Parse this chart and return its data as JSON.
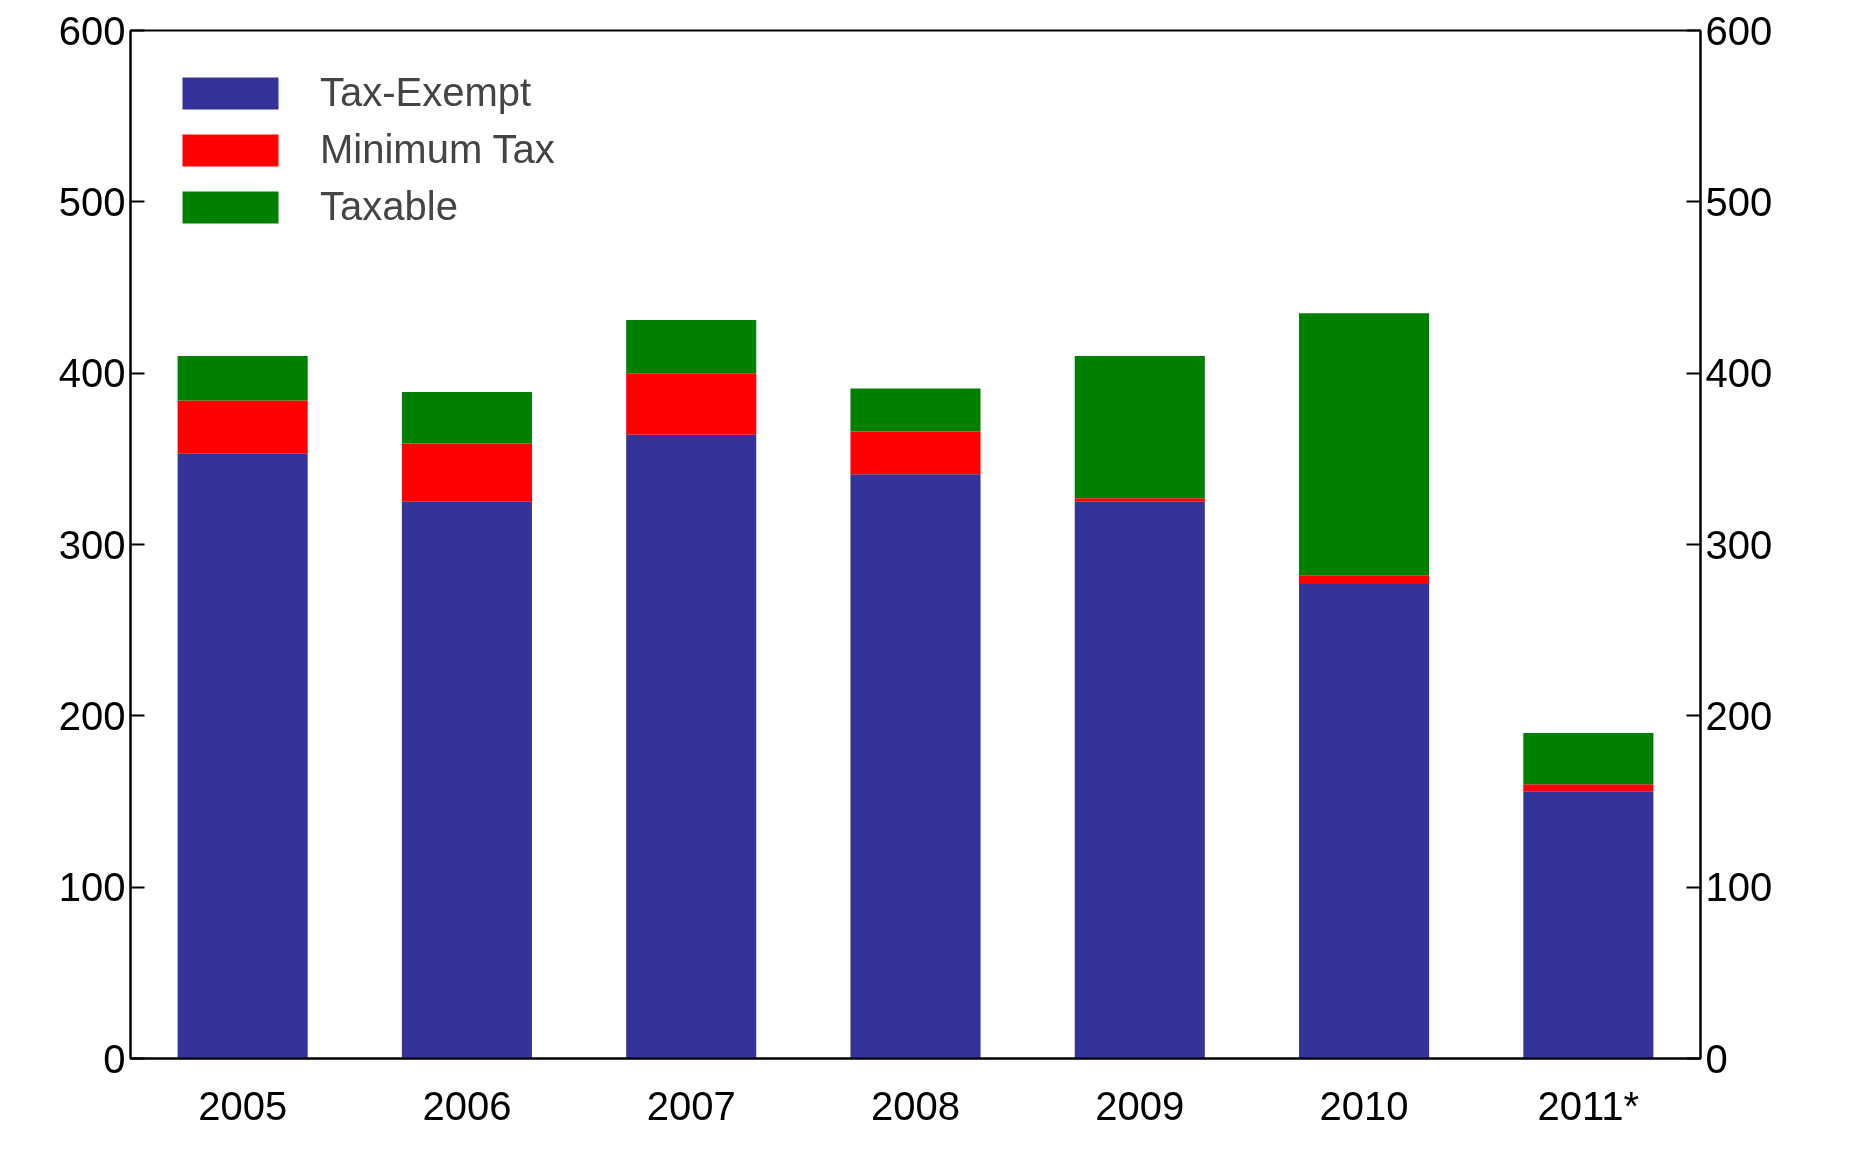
{
  "chart_data": {
    "type": "bar",
    "stacked": true,
    "categories": [
      "2005",
      "2006",
      "2007",
      "2008",
      "2009",
      "2010",
      "2011*"
    ],
    "series": [
      {
        "name": "Tax-Exempt",
        "color": "#333399",
        "values": [
          353,
          325,
          364,
          341,
          325,
          277,
          156
        ]
      },
      {
        "name": "Minimum Tax",
        "color": "#ff0000",
        "values": [
          31,
          34,
          36,
          25,
          2,
          5,
          4
        ]
      },
      {
        "name": "Taxable",
        "color": "#008000",
        "values": [
          26,
          30,
          31,
          25,
          83,
          153,
          30
        ]
      }
    ],
    "ylim": [
      0,
      600
    ],
    "yticks": [
      0,
      100,
      200,
      300,
      400,
      500,
      600
    ],
    "y2lim": [
      0,
      600
    ],
    "y2ticks": [
      0,
      100,
      200,
      300,
      400,
      500,
      600
    ],
    "grid": false,
    "legend": "top left"
  }
}
